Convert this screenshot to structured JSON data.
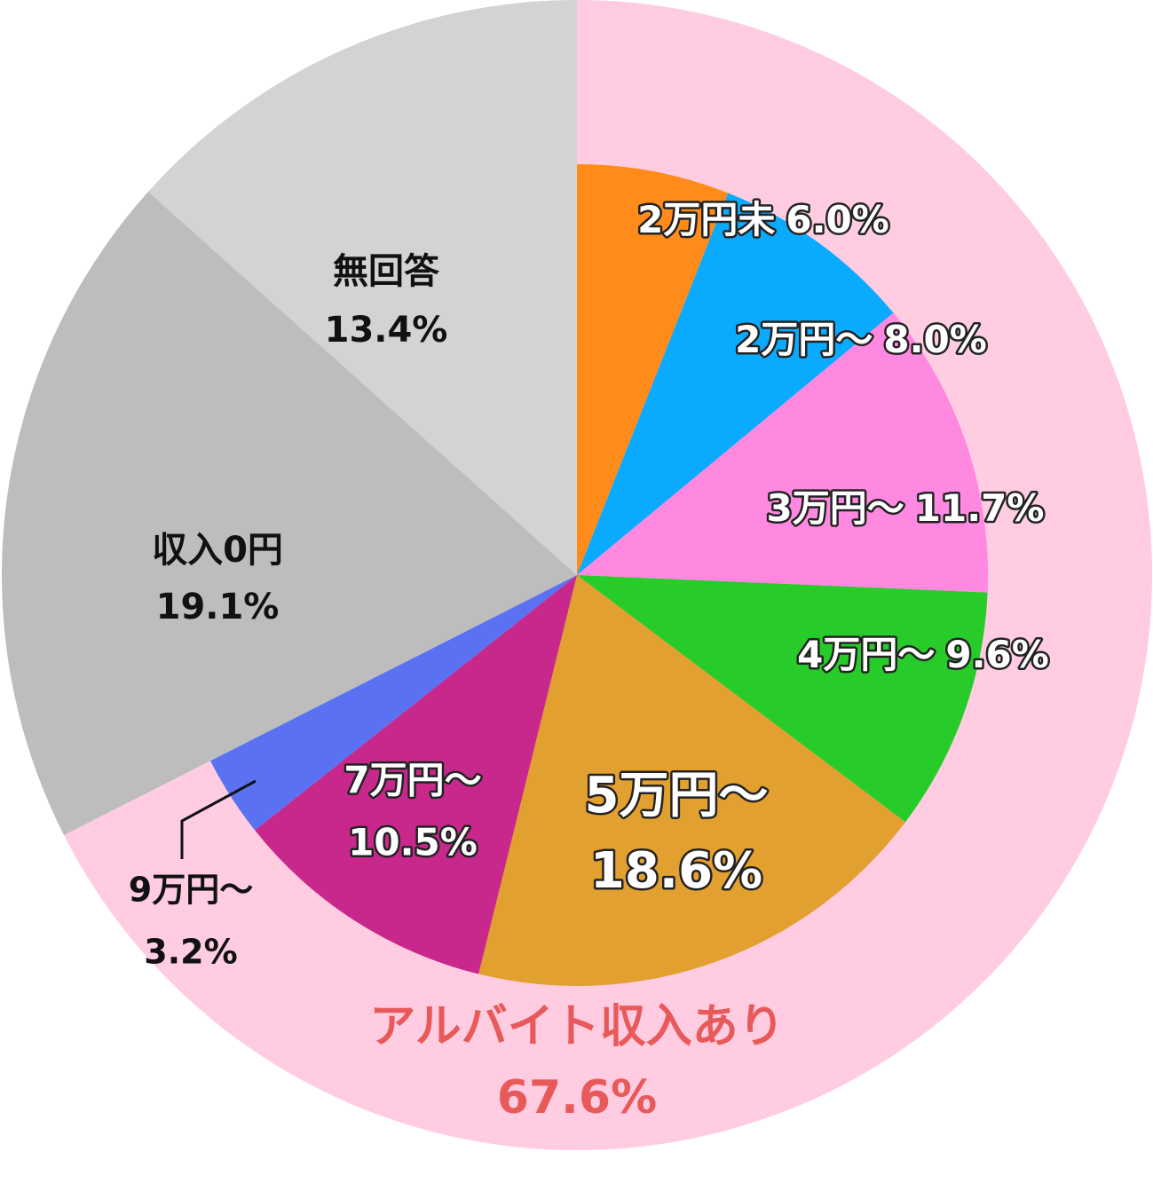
{
  "chart_data": {
    "type": "pie",
    "rings": [
      {
        "categories": [
          "アルバイト収入あり",
          "収入0円",
          "無回答"
        ],
        "values": [
          67.6,
          19.1,
          13.4
        ],
        "value_labels": [
          "67.6%",
          "19.1%",
          "13.4%"
        ],
        "colors": [
          "#ffcce1",
          "#bdbdbd",
          "#d3d3d3"
        ]
      },
      {
        "categories": [
          "2万円未",
          "2万円～",
          "3万円～",
          "4万円～",
          "5万円～",
          "7万円～",
          "9万円～"
        ],
        "values": [
          6.0,
          8.0,
          11.7,
          9.6,
          18.6,
          10.5,
          3.2
        ],
        "value_labels": [
          "6.0%",
          "8.0%",
          "11.7%",
          "9.6%",
          "18.6%",
          "10.5%",
          "3.2%"
        ],
        "colors": [
          "#ff8c1a",
          "#0aabff",
          "#ff88e0",
          "#27cc2b",
          "#e2a030",
          "#c8288c",
          "#5a72f2"
        ]
      }
    ]
  }
}
